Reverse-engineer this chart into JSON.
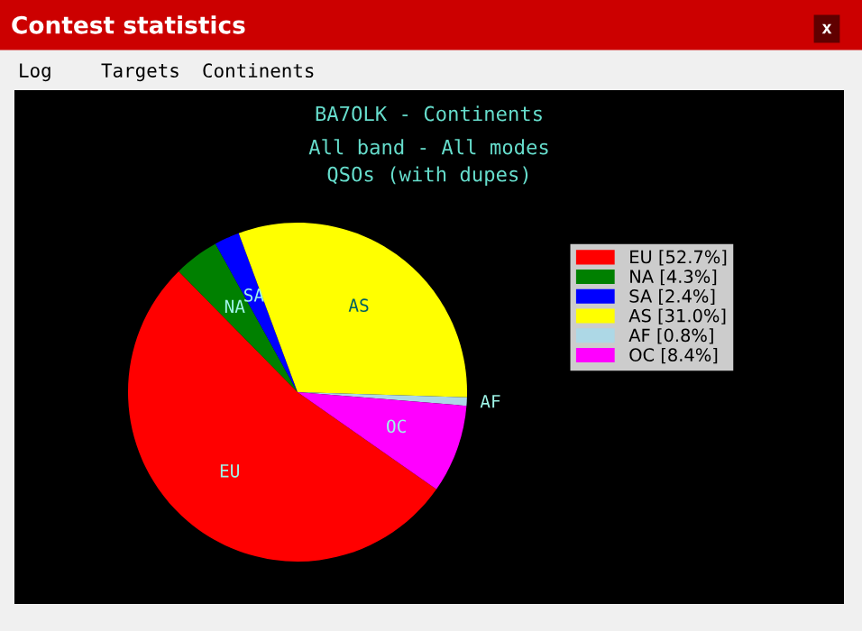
{
  "chart_data": {
    "type": "pie",
    "title": "BA7OLK - Continents",
    "subtitle": "All band - All modes\nQSOs (with dupes)",
    "categories": [
      "EU [52.7%]",
      "NA [4.3%]",
      "SA [2.4%]",
      "AS [31.0%]",
      "AF [0.8%]",
      "OC [8.4%]"
    ],
    "values": [
      52.7,
      4.3,
      2.4,
      31.0,
      0.8,
      8.4
    ],
    "colors": [
      "#ff0000",
      "#008000",
      "#0000ff",
      "#ffff00",
      "#add8e6",
      "#ff00ff"
    ],
    "legend": "right",
    "annotations": [
      "Contest statistics",
      "x",
      "Log",
      "Targets",
      "Continents",
      {
        "text": "EU",
        "x": "EU [52.7%]"
      },
      {
        "text": "NA",
        "x": "NA [4.3%]"
      },
      {
        "text": "SA",
        "x": "SA [2.4%]"
      },
      {
        "text": "AS",
        "x": "AS [31.0%]"
      },
      {
        "text": "AF",
        "x": "AF [0.8%]"
      },
      {
        "text": "OC",
        "x": "OC [8.4%]"
      }
    ]
  }
}
